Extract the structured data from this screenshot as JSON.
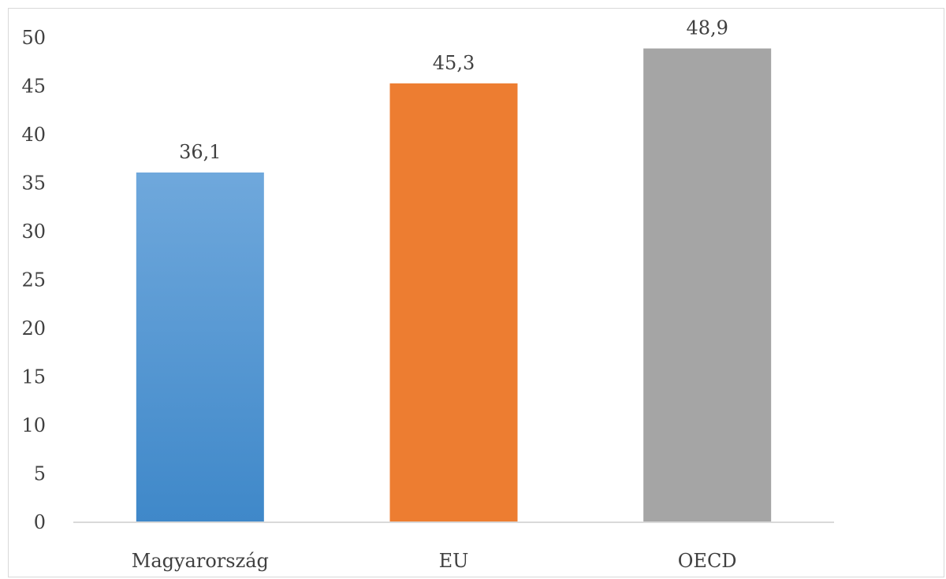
{
  "chart_data": {
    "type": "bar",
    "categories": [
      "Magyarország",
      "EU",
      "OECD"
    ],
    "values": [
      36.1,
      45.3,
      48.9
    ],
    "data_labels": [
      "36,1",
      "45,3",
      "48,9"
    ],
    "colors": [
      "#5b9bd5",
      "#ed7d31",
      "#a5a5a5"
    ],
    "gradient_colors": [
      [
        "#6fa8dc",
        "#3f88c9"
      ],
      [
        "#ed7d31",
        "#ed7d31"
      ],
      [
        "#a5a5a5",
        "#a5a5a5"
      ]
    ],
    "ylim": [
      0,
      50
    ],
    "yticks": [
      "0",
      "5",
      "10",
      "15",
      "20",
      "25",
      "30",
      "35",
      "40",
      "45",
      "50"
    ],
    "grid": false,
    "legend": "none",
    "title": "",
    "xlabel": "",
    "ylabel": ""
  }
}
